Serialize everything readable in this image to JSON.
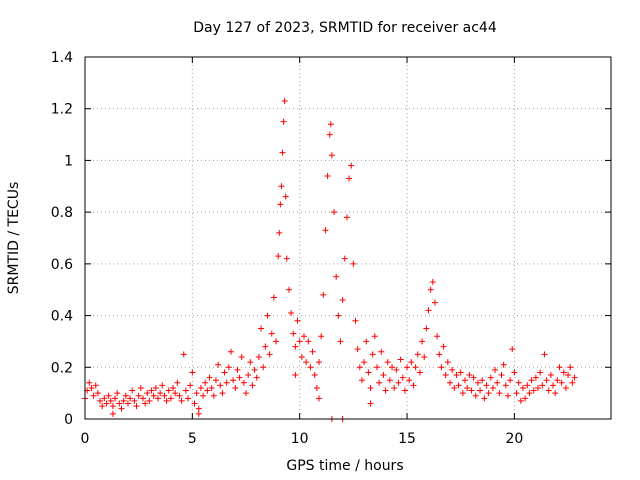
{
  "chart_data": {
    "type": "scatter",
    "title": "Day 127 of 2023, SRMTID for receiver ac44",
    "xlabel": "GPS time / hours",
    "ylabel": "SRMTID / TECUs",
    "xlim": [
      0,
      24.5
    ],
    "ylim": [
      0,
      1.4
    ],
    "xticks": [
      0,
      5,
      10,
      15,
      20
    ],
    "xtick_labels": [
      "0",
      "5",
      "10",
      "15",
      "20"
    ],
    "yticks": [
      0,
      0.2,
      0.4,
      0.6,
      0.8,
      1.0,
      1.2,
      1.4
    ],
    "ytick_labels": [
      "0",
      "0.2",
      "0.4",
      "0.6",
      "0.8",
      "1",
      "1.2",
      "1.4"
    ],
    "grid": true,
    "marker": "+",
    "color": "#ff0000",
    "series": [
      {
        "name": "SRMTID",
        "points": [
          [
            0.0,
            0.08
          ],
          [
            0.1,
            0.11
          ],
          [
            0.2,
            0.14
          ],
          [
            0.3,
            0.12
          ],
          [
            0.4,
            0.09
          ],
          [
            0.5,
            0.13
          ],
          [
            0.6,
            0.1
          ],
          [
            0.7,
            0.07
          ],
          [
            0.8,
            0.05
          ],
          [
            0.9,
            0.08
          ],
          [
            1.0,
            0.06
          ],
          [
            1.1,
            0.09
          ],
          [
            1.2,
            0.07
          ],
          [
            1.3,
            0.05
          ],
          [
            1.4,
            0.08
          ],
          [
            1.5,
            0.1
          ],
          [
            1.6,
            0.06
          ],
          [
            1.7,
            0.04
          ],
          [
            1.8,
            0.07
          ],
          [
            1.9,
            0.09
          ],
          [
            2.0,
            0.06
          ],
          [
            2.1,
            0.08
          ],
          [
            2.2,
            0.11
          ],
          [
            2.3,
            0.07
          ],
          [
            2.4,
            0.05
          ],
          [
            2.5,
            0.09
          ],
          [
            2.6,
            0.12
          ],
          [
            2.7,
            0.08
          ],
          [
            2.8,
            0.06
          ],
          [
            2.9,
            0.1
          ],
          [
            3.0,
            0.07
          ],
          [
            3.1,
            0.11
          ],
          [
            3.2,
            0.09
          ],
          [
            3.3,
            0.12
          ],
          [
            3.4,
            0.08
          ],
          [
            3.5,
            0.1
          ],
          [
            3.6,
            0.13
          ],
          [
            3.7,
            0.09
          ],
          [
            3.8,
            0.07
          ],
          [
            3.9,
            0.11
          ],
          [
            4.0,
            0.08
          ],
          [
            4.1,
            0.12
          ],
          [
            4.2,
            0.1
          ],
          [
            4.3,
            0.14
          ],
          [
            4.4,
            0.09
          ],
          [
            4.5,
            0.07
          ],
          [
            4.6,
            0.25
          ],
          [
            4.7,
            0.11
          ],
          [
            4.8,
            0.08
          ],
          [
            4.9,
            0.13
          ],
          [
            5.0,
            0.18
          ],
          [
            5.1,
            0.06
          ],
          [
            5.2,
            0.1
          ],
          [
            5.3,
            0.04
          ],
          [
            5.4,
            0.12
          ],
          [
            5.5,
            0.09
          ],
          [
            5.6,
            0.14
          ],
          [
            5.7,
            0.11
          ],
          [
            5.8,
            0.16
          ],
          [
            5.9,
            0.12
          ],
          [
            6.0,
            0.09
          ],
          [
            6.1,
            0.15
          ],
          [
            6.2,
            0.21
          ],
          [
            6.3,
            0.13
          ],
          [
            6.4,
            0.1
          ],
          [
            6.5,
            0.18
          ],
          [
            6.6,
            0.14
          ],
          [
            6.7,
            0.2
          ],
          [
            6.8,
            0.26
          ],
          [
            6.9,
            0.15
          ],
          [
            7.0,
            0.12
          ],
          [
            7.1,
            0.19
          ],
          [
            7.2,
            0.16
          ],
          [
            7.3,
            0.24
          ],
          [
            7.4,
            0.14
          ],
          [
            7.5,
            0.1
          ],
          [
            7.6,
            0.17
          ],
          [
            7.7,
            0.22
          ],
          [
            7.8,
            0.13
          ],
          [
            7.9,
            0.19
          ],
          [
            8.0,
            0.16
          ],
          [
            8.1,
            0.24
          ],
          [
            8.2,
            0.35
          ],
          [
            8.3,
            0.2
          ],
          [
            8.4,
            0.28
          ],
          [
            8.5,
            0.4
          ],
          [
            8.6,
            0.25
          ],
          [
            8.7,
            0.33
          ],
          [
            8.8,
            0.47
          ],
          [
            8.9,
            0.3
          ],
          [
            9.0,
            0.63
          ],
          [
            9.05,
            0.72
          ],
          [
            9.1,
            0.83
          ],
          [
            9.15,
            0.9
          ],
          [
            9.2,
            1.03
          ],
          [
            9.25,
            1.15
          ],
          [
            9.3,
            1.23
          ],
          [
            9.35,
            0.86
          ],
          [
            9.4,
            0.62
          ],
          [
            9.5,
            0.5
          ],
          [
            9.6,
            0.41
          ],
          [
            9.7,
            0.33
          ],
          [
            9.8,
            0.28
          ],
          [
            9.9,
            0.38
          ],
          [
            10.0,
            0.3
          ],
          [
            10.1,
            0.24
          ],
          [
            10.2,
            0.32
          ],
          [
            10.3,
            0.22
          ],
          [
            10.4,
            0.3
          ],
          [
            10.5,
            0.2
          ],
          [
            10.6,
            0.26
          ],
          [
            10.7,
            0.17
          ],
          [
            10.8,
            0.12
          ],
          [
            10.9,
            0.22
          ],
          [
            11.0,
            0.32
          ],
          [
            11.1,
            0.48
          ],
          [
            11.2,
            0.73
          ],
          [
            11.3,
            0.94
          ],
          [
            11.4,
            1.1
          ],
          [
            11.45,
            1.14
          ],
          [
            11.5,
            1.02
          ],
          [
            11.6,
            0.8
          ],
          [
            11.7,
            0.55
          ],
          [
            11.8,
            0.4
          ],
          [
            11.9,
            0.3
          ],
          [
            12.0,
            0.46
          ],
          [
            12.1,
            0.62
          ],
          [
            12.2,
            0.78
          ],
          [
            12.3,
            0.93
          ],
          [
            12.4,
            0.98
          ],
          [
            12.5,
            0.6
          ],
          [
            12.6,
            0.38
          ],
          [
            12.7,
            0.27
          ],
          [
            12.8,
            0.2
          ],
          [
            12.9,
            0.15
          ],
          [
            13.0,
            0.22
          ],
          [
            13.1,
            0.3
          ],
          [
            13.2,
            0.18
          ],
          [
            13.3,
            0.12
          ],
          [
            13.4,
            0.25
          ],
          [
            13.5,
            0.32
          ],
          [
            13.6,
            0.2
          ],
          [
            13.7,
            0.14
          ],
          [
            13.8,
            0.26
          ],
          [
            13.9,
            0.17
          ],
          [
            14.0,
            0.11
          ],
          [
            14.1,
            0.22
          ],
          [
            14.2,
            0.15
          ],
          [
            14.3,
            0.2
          ],
          [
            14.4,
            0.12
          ],
          [
            14.5,
            0.19
          ],
          [
            14.6,
            0.14
          ],
          [
            14.7,
            0.23
          ],
          [
            14.8,
            0.16
          ],
          [
            14.9,
            0.11
          ],
          [
            15.0,
            0.2
          ],
          [
            15.1,
            0.15
          ],
          [
            15.2,
            0.22
          ],
          [
            15.3,
            0.13
          ],
          [
            15.4,
            0.2
          ],
          [
            15.5,
            0.25
          ],
          [
            15.6,
            0.18
          ],
          [
            15.7,
            0.3
          ],
          [
            15.8,
            0.24
          ],
          [
            15.9,
            0.35
          ],
          [
            16.0,
            0.42
          ],
          [
            16.1,
            0.5
          ],
          [
            16.2,
            0.53
          ],
          [
            16.3,
            0.45
          ],
          [
            16.4,
            0.32
          ],
          [
            16.5,
            0.25
          ],
          [
            16.6,
            0.2
          ],
          [
            16.7,
            0.28
          ],
          [
            16.8,
            0.17
          ],
          [
            16.9,
            0.22
          ],
          [
            17.0,
            0.14
          ],
          [
            17.1,
            0.19
          ],
          [
            17.2,
            0.12
          ],
          [
            17.3,
            0.17
          ],
          [
            17.4,
            0.13
          ],
          [
            17.5,
            0.18
          ],
          [
            17.6,
            0.1
          ],
          [
            17.7,
            0.15
          ],
          [
            17.8,
            0.12
          ],
          [
            17.9,
            0.17
          ],
          [
            18.0,
            0.11
          ],
          [
            18.1,
            0.16
          ],
          [
            18.2,
            0.09
          ],
          [
            18.3,
            0.14
          ],
          [
            18.4,
            0.11
          ],
          [
            18.5,
            0.15
          ],
          [
            18.6,
            0.08
          ],
          [
            18.7,
            0.13
          ],
          [
            18.8,
            0.1
          ],
          [
            18.9,
            0.16
          ],
          [
            19.0,
            0.12
          ],
          [
            19.1,
            0.19
          ],
          [
            19.2,
            0.14
          ],
          [
            19.3,
            0.1
          ],
          [
            19.4,
            0.17
          ],
          [
            19.5,
            0.21
          ],
          [
            19.6,
            0.13
          ],
          [
            19.7,
            0.09
          ],
          [
            19.8,
            0.15
          ],
          [
            19.9,
            0.27
          ],
          [
            20.0,
            0.18
          ],
          [
            20.1,
            0.1
          ],
          [
            20.2,
            0.14
          ],
          [
            20.3,
            0.07
          ],
          [
            20.4,
            0.12
          ],
          [
            20.5,
            0.08
          ],
          [
            20.6,
            0.13
          ],
          [
            20.7,
            0.1
          ],
          [
            20.8,
            0.15
          ],
          [
            20.9,
            0.11
          ],
          [
            21.0,
            0.16
          ],
          [
            21.1,
            0.12
          ],
          [
            21.2,
            0.18
          ],
          [
            21.3,
            0.13
          ],
          [
            21.4,
            0.25
          ],
          [
            21.5,
            0.15
          ],
          [
            21.6,
            0.11
          ],
          [
            21.7,
            0.17
          ],
          [
            21.8,
            0.13
          ],
          [
            21.9,
            0.1
          ],
          [
            22.0,
            0.15
          ],
          [
            22.1,
            0.2
          ],
          [
            22.2,
            0.14
          ],
          [
            22.3,
            0.18
          ],
          [
            22.4,
            0.12
          ],
          [
            22.5,
            0.17
          ],
          [
            22.6,
            0.2
          ],
          [
            22.7,
            0.14
          ],
          [
            22.8,
            0.16
          ],
          [
            12.0,
            0.0
          ],
          [
            11.5,
            0.0
          ],
          [
            9.8,
            0.17
          ],
          [
            10.9,
            0.08
          ],
          [
            13.3,
            0.06
          ],
          [
            5.3,
            0.02
          ],
          [
            1.3,
            0.02
          ]
        ]
      }
    ]
  }
}
